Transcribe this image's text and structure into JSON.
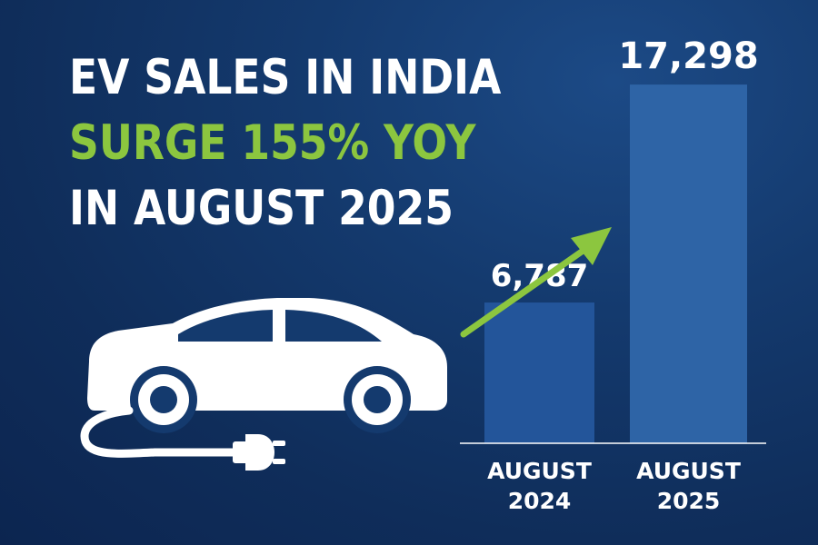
{
  "headline": {
    "line1": "EV SALES IN INDIA",
    "line2": "SURGE 155% YOY",
    "line3": "IN AUGUST 2025"
  },
  "colors": {
    "background": "#102d5a",
    "accent": "#8cc63f",
    "bar_2024": "#23559a",
    "bar_2025": "#2e64a6",
    "text": "#ffffff"
  },
  "icons": [
    "electric-car-icon",
    "plug-icon",
    "trend-arrow-icon"
  ],
  "chart_data": {
    "type": "bar",
    "categories": [
      [
        "AUGUST",
        "2024"
      ],
      [
        "AUGUST",
        "2025"
      ]
    ],
    "values": [
      6787,
      17298
    ],
    "value_labels": [
      "6,787",
      "17,298"
    ],
    "ylim": [
      0,
      20500
    ],
    "grid": false,
    "legend": "none",
    "annotation": "upward-trend-arrow"
  }
}
